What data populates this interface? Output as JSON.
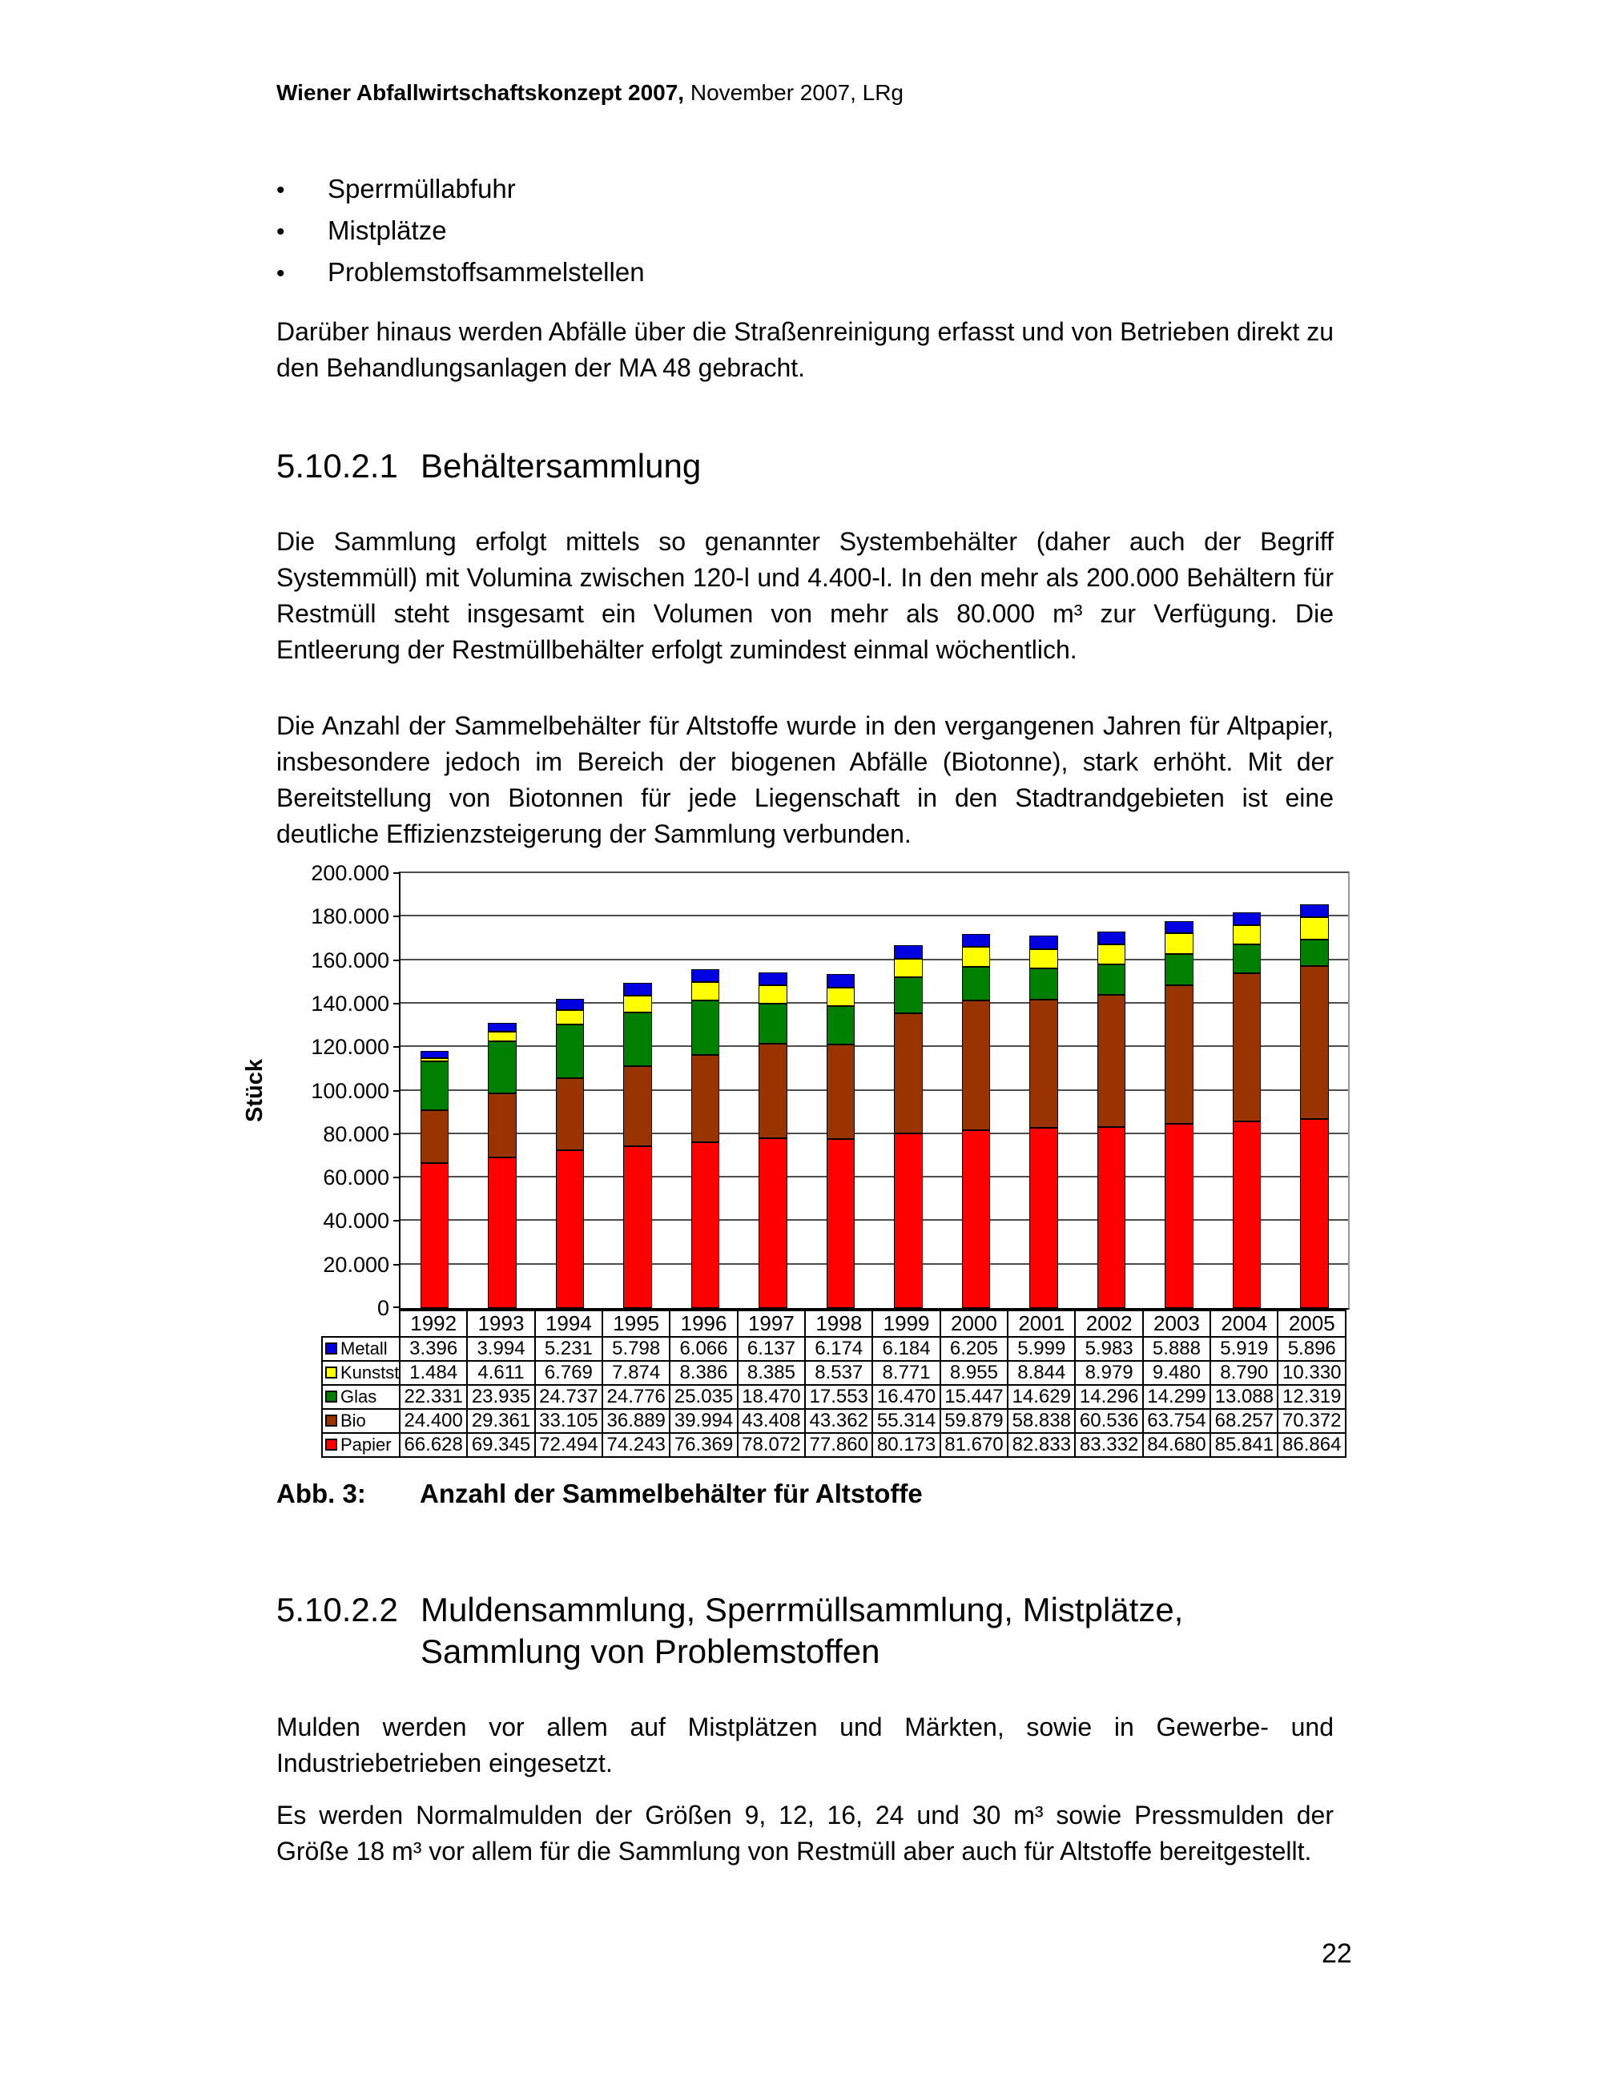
{
  "header": {
    "title_bold": "Wiener Abfallwirtschaftskonzept 2007,",
    "title_rest": " November 2007, LRg"
  },
  "bullets": {
    "marker": "•",
    "items": [
      "Sperrmüllabfuhr",
      "Mistplätze",
      "Problemstoffsammelstellen"
    ]
  },
  "intro": "Darüber hinaus werden Abfälle über die Straßenreinigung erfasst und von Betrieben direkt zu den Behandlungsanlagen der MA 48 gebracht.",
  "section_1": {
    "number": "5.10.2.1",
    "title": "Behältersammlung",
    "para1": "Die Sammlung erfolgt mittels so genannter Systembehälter (daher auch der Begriff Systemmüll) mit Volumina zwischen 120-l und 4.400-l. In den mehr als 200.000 Behältern für Restmüll steht insgesamt ein Volumen von mehr als 80.000 m³ zur Verfügung. Die Entleerung der Restmüllbehälter erfolgt zumindest einmal wöchentlich.",
    "para2": "Die Anzahl der Sammelbehälter für Altstoffe wurde in den vergangenen Jahren für Altpapier, insbesondere jedoch im Bereich der biogenen Abfälle (Biotonne), stark erhöht. Mit der Bereitstellung von Biotonnen für jede Liegenschaft in den Stadtrandgebieten ist eine deutliche Effizienzsteigerung der Sammlung verbunden."
  },
  "chart_data": {
    "type": "bar",
    "stacked": true,
    "title": "",
    "xlabel": "",
    "ylabel": "Stück",
    "ylim": [
      0,
      200000
    ],
    "ytick_step": 20000,
    "ytick_labels_bottom_to_top": [
      "0",
      "20.000",
      "40.000",
      "60.000",
      "80.000",
      "100.000",
      "120.000",
      "140.000",
      "160.000",
      "180.000",
      "200.000"
    ],
    "grid": true,
    "legend_position": "table-left",
    "categories": [
      "1992",
      "1993",
      "1994",
      "1995",
      "1996",
      "1997",
      "1998",
      "1999",
      "2000",
      "2001",
      "2002",
      "2003",
      "2004",
      "2005"
    ],
    "series": [
      {
        "name": "Metall",
        "color": "#0000e0",
        "values": [
          3396,
          3994,
          5231,
          5798,
          6066,
          6137,
          6174,
          6184,
          6205,
          5999,
          5983,
          5888,
          5919,
          5896
        ]
      },
      {
        "name": "Kunstst.",
        "color": "#ffff00",
        "values": [
          1484,
          4611,
          6769,
          7874,
          8386,
          8385,
          8537,
          8771,
          8955,
          8844,
          8979,
          9480,
          8790,
          10330
        ]
      },
      {
        "name": "Glas",
        "color": "#008000",
        "values": [
          22331,
          23935,
          24737,
          24776,
          25035,
          18470,
          17553,
          16470,
          15447,
          14629,
          14296,
          14299,
          13088,
          12319
        ]
      },
      {
        "name": "Bio",
        "color": "#993300",
        "values": [
          24400,
          29361,
          33105,
          36889,
          39994,
          43408,
          43362,
          55314,
          59879,
          58838,
          60536,
          63754,
          68257,
          70372
        ]
      },
      {
        "name": "Papier",
        "color": "#ff0000",
        "values": [
          66628,
          69345,
          72494,
          74243,
          76369,
          78072,
          77860,
          80173,
          81670,
          82833,
          83332,
          84680,
          85841,
          86864
        ]
      }
    ],
    "stack_bottom_to_top": [
      "Papier",
      "Bio",
      "Glas",
      "Kunstst.",
      "Metall"
    ]
  },
  "caption": {
    "label": "Abb. 3:",
    "text": "Anzahl der Sammelbehälter für Altstoffe"
  },
  "section_2": {
    "number": "5.10.2.2",
    "title_line1": "Muldensammlung, Sperrmüllsammlung, Mistplätze,",
    "title_line2": "Sammlung von Problemstoffen",
    "para1": "Mulden werden vor allem auf Mistplätzen und Märkten, sowie in Gewerbe- und Industriebetrieben eingesetzt.",
    "para2": "Es werden Normalmulden der Größen 9, 12, 16, 24 und 30 m³ sowie Pressmulden der Größe 18 m³ vor allem für die Sammlung von Restmüll aber auch für Altstoffe bereitgestellt."
  },
  "page_number": "22"
}
